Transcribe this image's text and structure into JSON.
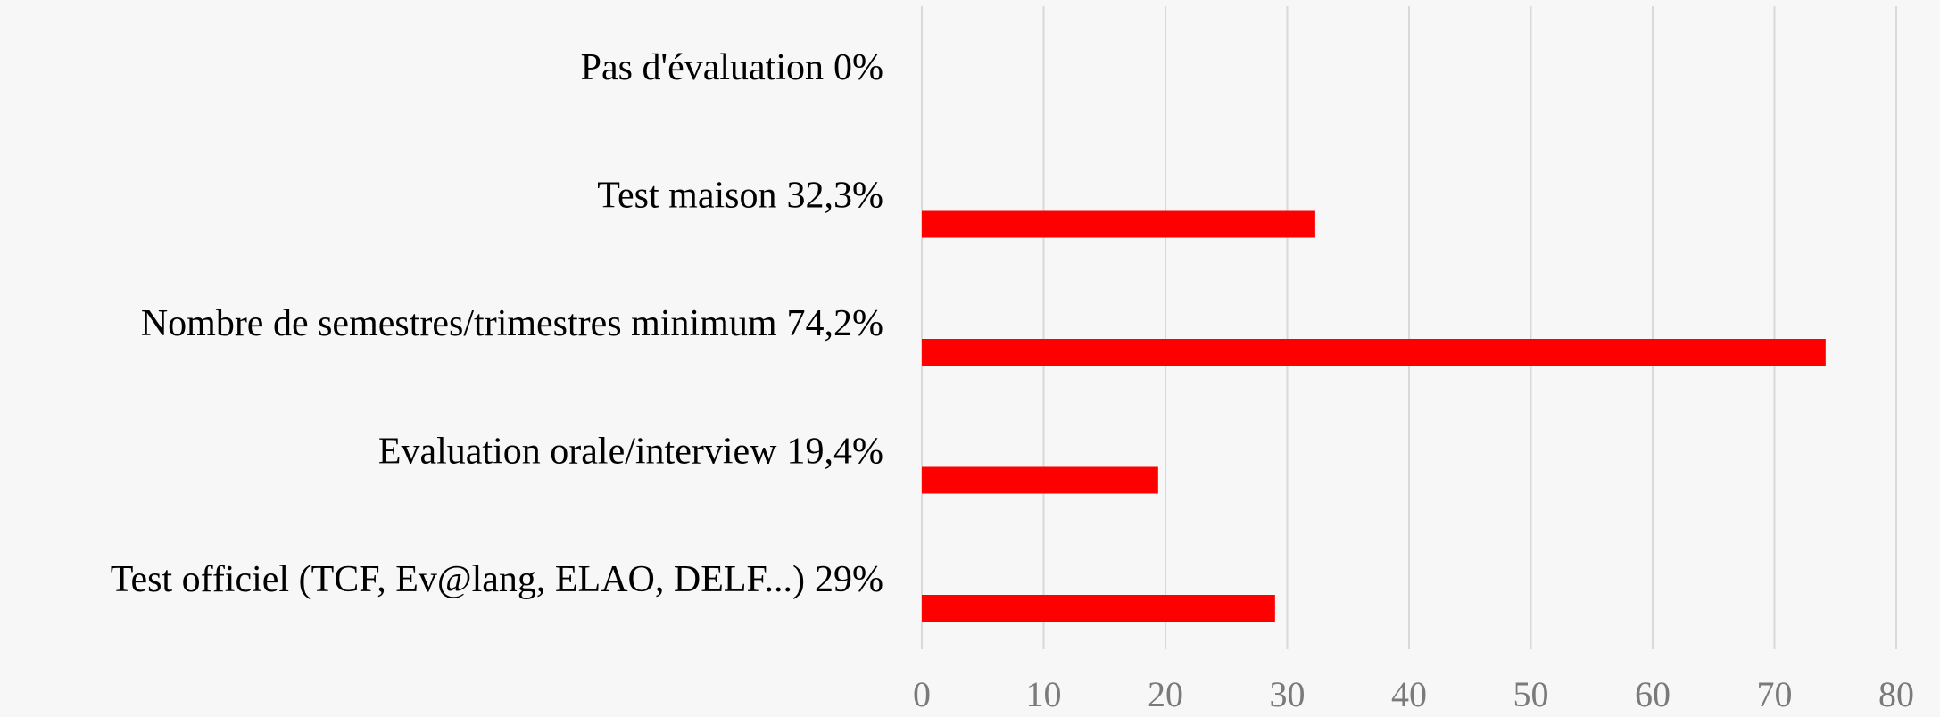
{
  "chart_data": {
    "type": "barh",
    "categories": [
      "Pas d'évaluation",
      "Test maison",
      "Nombre de semestres/trimestres minimum",
      "Evaluation orale/interview",
      "Test officiel (TCF, Ev@lang, ELAO, DELF...)"
    ],
    "values": [
      0,
      32.3,
      74.2,
      19.4,
      29
    ],
    "value_labels": [
      "0%",
      "32,3%",
      "74,2%",
      "19,4%",
      "29%"
    ],
    "color": "#ff0000",
    "xlim": [
      0,
      80
    ],
    "xticks": [
      0,
      10,
      20,
      30,
      40,
      50,
      60,
      70,
      80
    ],
    "grid": true
  }
}
